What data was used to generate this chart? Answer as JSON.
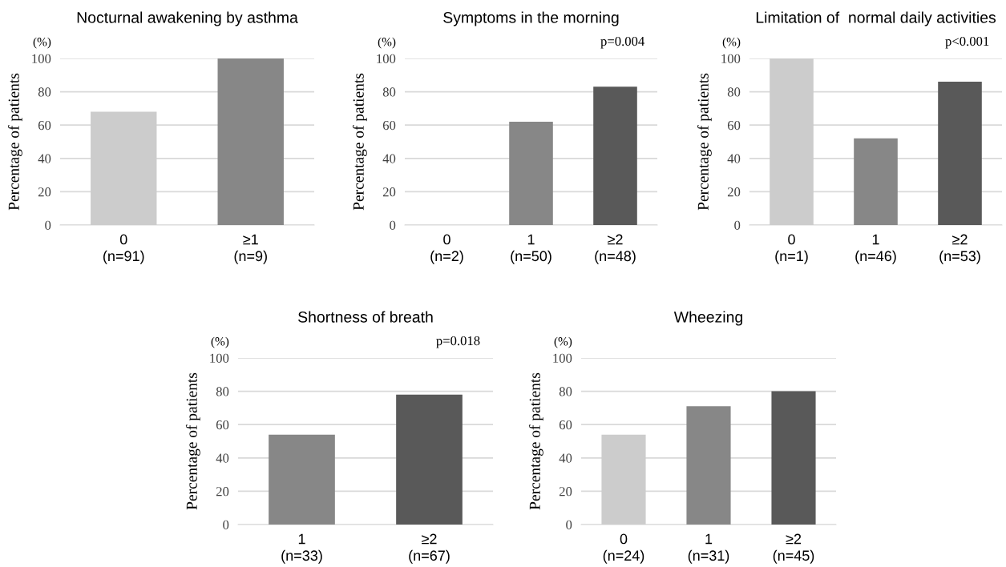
{
  "chart_data": [
    {
      "type": "bar",
      "title": "Nocturnal awakening by asthma",
      "ylabel": "Percentage of patients",
      "categories": [
        "0\n(n=91)",
        "≥1\n(n=9)"
      ],
      "values": [
        68,
        100
      ],
      "colors": [
        "#cccccc",
        "#878787"
      ],
      "ylim": [
        0,
        100
      ],
      "yticks": [
        0,
        20,
        40,
        60,
        80,
        100
      ],
      "grid": "y",
      "annotations": [
        "(%)"
      ]
    },
    {
      "type": "bar",
      "title": "Symptoms in the morning",
      "ylabel": "Percentage of patients",
      "categories": [
        "0\n(n=2)",
        "1\n(n=50)",
        "≥2\n(n=48)"
      ],
      "values": [
        0,
        62,
        83
      ],
      "colors": [
        "#cccccc",
        "#878787",
        "#595959"
      ],
      "ylim": [
        0,
        100
      ],
      "yticks": [
        0,
        20,
        40,
        60,
        80,
        100
      ],
      "grid": "y",
      "annotations": [
        "(%)",
        "p=0.004"
      ]
    },
    {
      "type": "bar",
      "title": "Limitation of  normal daily activities",
      "ylabel": "Percentage of patients",
      "categories": [
        "0\n(n=1)",
        "1\n(n=46)",
        "≥2\n(n=53)"
      ],
      "values": [
        100,
        52,
        86
      ],
      "colors": [
        "#cccccc",
        "#878787",
        "#595959"
      ],
      "ylim": [
        0,
        100
      ],
      "yticks": [
        0,
        20,
        40,
        60,
        80,
        100
      ],
      "grid": "y",
      "annotations": [
        "(%)",
        "p<0.001"
      ]
    },
    {
      "type": "bar",
      "title": "Shortness of breath",
      "ylabel": "Percentage of patients",
      "categories": [
        "1\n(n=33)",
        "≥2\n(n=67)"
      ],
      "values": [
        54,
        78
      ],
      "colors": [
        "#878787",
        "#595959"
      ],
      "ylim": [
        0,
        100
      ],
      "yticks": [
        0,
        20,
        40,
        60,
        80,
        100
      ],
      "grid": "y",
      "annotations": [
        "(%)",
        "p=0.018"
      ]
    },
    {
      "type": "bar",
      "title": "Wheezing",
      "ylabel": "Percentage of patients",
      "categories": [
        "0\n(n=24)",
        "1\n(n=31)",
        "≥2\n(n=45)"
      ],
      "values": [
        54,
        71,
        80
      ],
      "colors": [
        "#cccccc",
        "#878787",
        "#595959"
      ],
      "ylim": [
        0,
        100
      ],
      "yticks": [
        0,
        20,
        40,
        60,
        80,
        100
      ],
      "grid": "y",
      "annotations": [
        "(%)"
      ]
    }
  ]
}
